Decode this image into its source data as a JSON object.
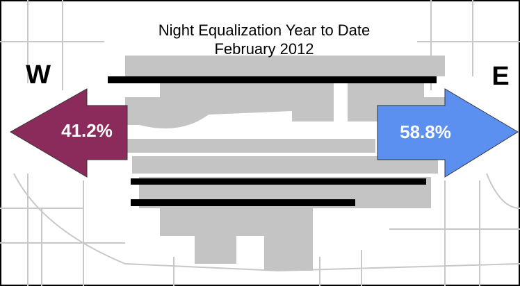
{
  "header": {
    "title": "Night Equalization Year to Date",
    "subtitle": "February 2012"
  },
  "west": {
    "label": "W",
    "share": "41.2%"
  },
  "east": {
    "label": "E",
    "share": "58.8%"
  }
}
